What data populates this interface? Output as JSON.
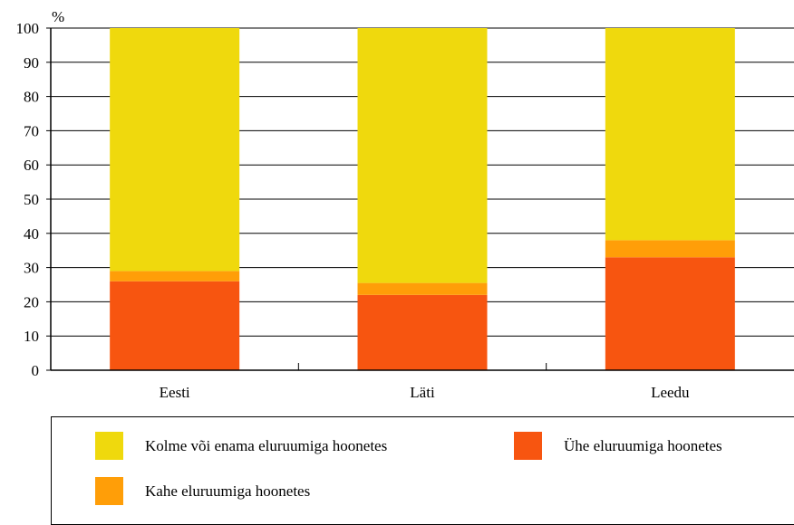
{
  "chart_data": {
    "type": "bar",
    "stacked": true,
    "unit_label": "%",
    "categories": [
      "Eesti",
      "Läti",
      "Leedu"
    ],
    "series": [
      {
        "name": "Ühe eluruumiga hoonetes",
        "color": "#F75510",
        "values": [
          26,
          22,
          33
        ]
      },
      {
        "name": "Kahe eluruumiga hoonetes",
        "color": "#FF9E08",
        "values": [
          3,
          3.5,
          5
        ]
      },
      {
        "name": "Kolme või enama eluruumiga hoonetes",
        "color": "#EFD90D",
        "values": [
          71,
          74.5,
          62
        ]
      }
    ],
    "ylim": [
      0,
      100
    ],
    "yticks": [
      0,
      10,
      20,
      30,
      40,
      50,
      60,
      70,
      80,
      90,
      100
    ],
    "grid": true,
    "legend_position": "bottom"
  },
  "legend": {
    "items": [
      {
        "label": "Kolme või enama eluruumiga hoonetes",
        "color": "#EFD90D"
      },
      {
        "label": "Ühe eluruumiga hoonetes",
        "color": "#F75510"
      },
      {
        "label": "Kahe eluruumiga hoonetes",
        "color": "#FF9E08"
      }
    ]
  }
}
